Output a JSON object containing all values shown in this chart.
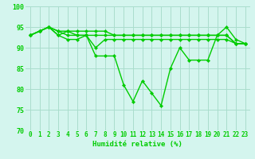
{
  "title": "",
  "xlabel": "Humidité relative (%)",
  "ylabel": "",
  "xlim": [
    -0.5,
    23.5
  ],
  "ylim": [
    70,
    100
  ],
  "yticks": [
    70,
    75,
    80,
    85,
    90,
    95,
    100
  ],
  "xtick_labels": [
    "0",
    "1",
    "2",
    "3",
    "4",
    "5",
    "6",
    "7",
    "8",
    "9",
    "10",
    "11",
    "12",
    "13",
    "14",
    "15",
    "16",
    "17",
    "18",
    "19",
    "20",
    "21",
    "22",
    "23"
  ],
  "bg_color": "#d4f5ee",
  "grid_color": "#aaddcc",
  "line_color": "#00cc00",
  "lines": [
    [
      93,
      94,
      95,
      93,
      94,
      93,
      93,
      88,
      88,
      88,
      81,
      77,
      82,
      79,
      76,
      85,
      90,
      87,
      87,
      87,
      93,
      95,
      92,
      91
    ],
    [
      93,
      94,
      95,
      93,
      92,
      92,
      93,
      90,
      92,
      92,
      92,
      92,
      92,
      92,
      92,
      92,
      92,
      92,
      92,
      92,
      92,
      92,
      91,
      91
    ],
    [
      93,
      94,
      95,
      94,
      93,
      93,
      93,
      93,
      93,
      93,
      93,
      93,
      93,
      93,
      93,
      93,
      93,
      93,
      93,
      93,
      93,
      93,
      91,
      91
    ],
    [
      93,
      94,
      95,
      94,
      94,
      94,
      94,
      94,
      94,
      93,
      93,
      93,
      93,
      93,
      93,
      93,
      93,
      93,
      93,
      93,
      93,
      93,
      91,
      91
    ]
  ]
}
